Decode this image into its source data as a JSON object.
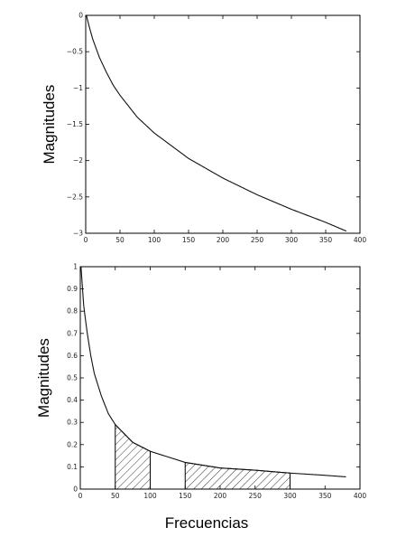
{
  "chart_data": [
    {
      "type": "line",
      "xlabel": "",
      "ylabel": "Magnitudes",
      "xlim": [
        0,
        400
      ],
      "ylim": [
        -3,
        0
      ],
      "xticks": [
        0,
        50,
        100,
        150,
        200,
        250,
        300,
        350,
        400
      ],
      "yticks": [
        0,
        -0.5,
        -1,
        -1.5,
        -2,
        -2.5,
        -3
      ],
      "xtick_labels": [
        "0",
        "50",
        "100",
        "150",
        "200",
        "250",
        "300",
        "350",
        "400"
      ],
      "ytick_labels": [
        "0",
        "−0.5",
        "−1",
        "−1.5",
        "−2",
        "−2.5",
        "−3"
      ],
      "grid": false,
      "series": [
        {
          "x": [
            1,
            5,
            10,
            20,
            30,
            40,
            50,
            75,
            100,
            150,
            200,
            250,
            300,
            350,
            380
          ],
          "values": [
            0,
            -0.15,
            -0.32,
            -0.58,
            -0.78,
            -0.96,
            -1.1,
            -1.4,
            -1.62,
            -1.97,
            -2.24,
            -2.47,
            -2.67,
            -2.85,
            -2.97
          ]
        }
      ]
    },
    {
      "type": "line",
      "xlabel": "Frecuencias",
      "ylabel": "Magnitudes",
      "xlim": [
        0,
        400
      ],
      "ylim": [
        0,
        1
      ],
      "xticks": [
        0,
        50,
        100,
        150,
        200,
        250,
        300,
        350,
        400
      ],
      "yticks": [
        0,
        0.1,
        0.2,
        0.3,
        0.4,
        0.5,
        0.6,
        0.7,
        0.8,
        0.9,
        1
      ],
      "xtick_labels": [
        "0",
        "50",
        "100",
        "150",
        "200",
        "250",
        "300",
        "350",
        "400"
      ],
      "ytick_labels": [
        "0",
        "0.1",
        "0.2",
        "0.3",
        "0.4",
        "0.5",
        "0.6",
        "0.7",
        "0.8",
        "0.9",
        "1"
      ],
      "grid": false,
      "series": [
        {
          "x": [
            1,
            5,
            10,
            15,
            20,
            30,
            40,
            50,
            75,
            100,
            150,
            200,
            250,
            300,
            350,
            380
          ],
          "values": [
            1.0,
            0.82,
            0.7,
            0.6,
            0.52,
            0.42,
            0.34,
            0.29,
            0.21,
            0.17,
            0.12,
            0.095,
            0.085,
            0.072,
            0.062,
            0.055
          ]
        }
      ],
      "shaded_regions": [
        [
          50,
          100
        ],
        [
          150,
          300
        ]
      ]
    }
  ]
}
